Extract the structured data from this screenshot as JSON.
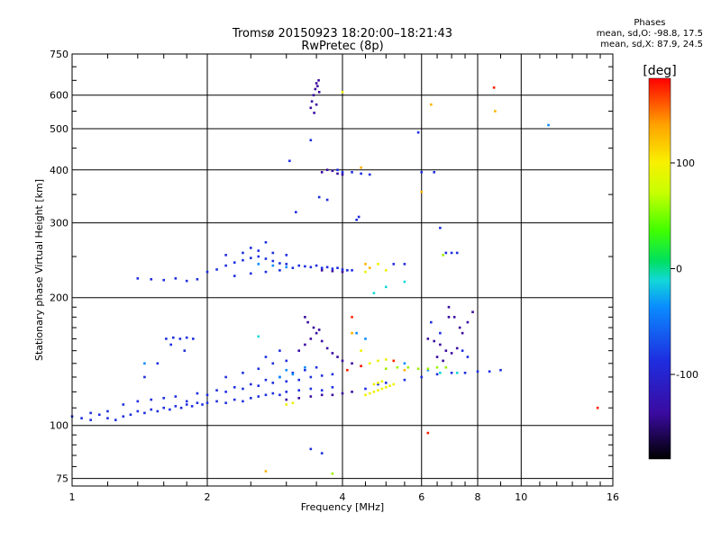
{
  "header": {
    "title_line1": "Tromsø 20150923 18:20:00–18:21:43",
    "title_line2": "RwPretec (8p)"
  },
  "phase_stats": {
    "heading": "Phases",
    "line_o": "mean, sd,O: -98.8, 17.5",
    "line_x": "mean, sd,X:  87.9, 24.5"
  },
  "chart_data": {
    "type": "scatter",
    "xlabel": "Frequency [MHz]",
    "ylabel": "Stationary phase Virtual Height [km]",
    "x_scale": "log",
    "y_scale": "log",
    "xlim": [
      1,
      16
    ],
    "ylim": [
      72,
      750
    ],
    "x_ticks": [
      1,
      2,
      4,
      6,
      8,
      10,
      16
    ],
    "x_tick_labels": [
      "1",
      "2",
      "4",
      "6",
      "8",
      "10",
      "16"
    ],
    "y_ticks": [
      75,
      100,
      200,
      300,
      400,
      500,
      600,
      750
    ],
    "y_tick_labels": [
      "75",
      "100",
      "200",
      "300",
      "400",
      "500",
      "600",
      "750"
    ],
    "grid": true,
    "colorbar": {
      "label": "[deg]",
      "range": [
        -180,
        180
      ],
      "ticks": [
        100,
        0,
        -100
      ],
      "tick_labels": [
        "100",
        "0",
        "-100"
      ]
    },
    "series": [
      {
        "phase": -100,
        "color": "#1e2ee0",
        "points": [
          [
            1.0,
            105
          ],
          [
            1.05,
            104
          ],
          [
            1.1,
            103
          ],
          [
            1.15,
            106
          ],
          [
            1.2,
            104
          ],
          [
            1.25,
            103
          ],
          [
            1.3,
            105
          ],
          [
            1.35,
            106
          ],
          [
            1.4,
            108
          ],
          [
            1.45,
            107
          ],
          [
            1.5,
            109
          ],
          [
            1.55,
            108
          ],
          [
            1.6,
            110
          ],
          [
            1.65,
            109
          ],
          [
            1.7,
            111
          ],
          [
            1.75,
            110
          ],
          [
            1.8,
            112
          ],
          [
            1.85,
            111
          ],
          [
            1.9,
            113
          ],
          [
            1.95,
            112
          ],
          [
            2.0,
            113
          ],
          [
            2.1,
            114
          ],
          [
            2.2,
            113
          ],
          [
            2.3,
            115
          ],
          [
            2.4,
            114
          ],
          [
            2.5,
            116
          ],
          [
            2.6,
            117
          ],
          [
            2.7,
            118
          ],
          [
            2.8,
            119
          ],
          [
            2.9,
            118
          ],
          [
            3.0,
            120
          ],
          [
            3.2,
            121
          ],
          [
            3.4,
            122
          ],
          [
            3.6,
            121
          ],
          [
            3.8,
            123
          ],
          [
            1.6,
            116
          ],
          [
            1.8,
            114
          ],
          [
            2.0,
            118
          ],
          [
            2.2,
            120
          ],
          [
            2.4,
            122
          ],
          [
            2.6,
            124
          ],
          [
            2.8,
            126
          ],
          [
            3.0,
            127
          ],
          [
            3.2,
            128
          ],
          [
            3.4,
            130
          ],
          [
            3.6,
            131
          ],
          [
            3.8,
            132
          ],
          [
            1.3,
            112
          ],
          [
            1.4,
            114
          ],
          [
            1.5,
            115
          ],
          [
            1.2,
            108
          ],
          [
            1.1,
            107
          ],
          [
            1.7,
            117
          ],
          [
            1.9,
            119
          ],
          [
            2.1,
            121
          ],
          [
            2.3,
            123
          ],
          [
            2.5,
            125
          ],
          [
            2.7,
            128
          ],
          [
            2.9,
            130
          ],
          [
            3.1,
            133
          ],
          [
            3.3,
            135
          ],
          [
            3.5,
            137
          ],
          [
            2.2,
            130
          ],
          [
            2.4,
            133
          ],
          [
            2.6,
            136
          ],
          [
            2.8,
            140
          ],
          [
            3.0,
            142
          ],
          [
            2.7,
            145
          ],
          [
            2.9,
            150
          ],
          [
            1.55,
            140
          ],
          [
            1.45,
            130
          ],
          [
            1.62,
            160
          ],
          [
            1.68,
            161
          ],
          [
            1.74,
            160
          ],
          [
            1.8,
            161
          ],
          [
            1.86,
            160
          ],
          [
            1.66,
            155
          ],
          [
            1.78,
            150
          ],
          [
            1.4,
            222
          ],
          [
            1.5,
            221
          ],
          [
            1.6,
            220
          ],
          [
            1.7,
            222
          ],
          [
            1.8,
            219
          ],
          [
            1.9,
            221
          ],
          [
            2.0,
            230
          ],
          [
            2.1,
            233
          ],
          [
            2.2,
            238
          ],
          [
            2.3,
            242
          ],
          [
            2.4,
            245
          ],
          [
            2.5,
            248
          ],
          [
            2.6,
            250
          ],
          [
            2.7,
            247
          ],
          [
            2.8,
            244
          ],
          [
            2.9,
            241
          ],
          [
            3.0,
            240
          ],
          [
            3.2,
            238
          ],
          [
            3.4,
            236
          ],
          [
            3.6,
            235
          ],
          [
            3.8,
            234
          ],
          [
            4.0,
            233
          ],
          [
            4.2,
            232
          ],
          [
            2.2,
            252
          ],
          [
            2.4,
            255
          ],
          [
            2.6,
            258
          ],
          [
            2.8,
            255
          ],
          [
            3.0,
            252
          ],
          [
            2.5,
            262
          ],
          [
            2.7,
            270
          ],
          [
            2.3,
            225
          ],
          [
            2.5,
            228
          ],
          [
            2.7,
            230
          ],
          [
            2.9,
            232
          ],
          [
            3.1,
            235
          ],
          [
            3.3,
            237
          ],
          [
            3.5,
            238
          ],
          [
            3.7,
            236
          ],
          [
            3.9,
            235
          ],
          [
            4.1,
            232
          ],
          [
            3.05,
            420
          ],
          [
            3.15,
            318
          ],
          [
            3.4,
            470
          ],
          [
            3.55,
            345
          ],
          [
            3.7,
            340
          ],
          [
            3.9,
            400
          ],
          [
            4.0,
            395
          ],
          [
            4.2,
            395
          ],
          [
            4.4,
            392
          ],
          [
            4.6,
            390
          ],
          [
            4.3,
            305
          ],
          [
            4.35,
            310
          ],
          [
            5.9,
            490
          ],
          [
            6.0,
            395
          ],
          [
            6.4,
            395
          ],
          [
            6.6,
            292
          ],
          [
            5.2,
            240
          ],
          [
            5.5,
            240
          ],
          [
            4.5,
            122
          ],
          [
            4.8,
            125
          ],
          [
            5.0,
            126
          ],
          [
            5.5,
            128
          ],
          [
            6.0,
            130
          ],
          [
            6.5,
            132
          ],
          [
            7.0,
            133
          ],
          [
            7.5,
            133
          ],
          [
            8.0,
            134
          ],
          [
            8.5,
            134
          ],
          [
            9.0,
            135
          ],
          [
            6.8,
            255
          ],
          [
            7.0,
            255
          ],
          [
            7.2,
            255
          ],
          [
            6.3,
            175
          ],
          [
            6.6,
            165
          ],
          [
            7.4,
            150
          ],
          [
            7.6,
            145
          ],
          [
            3.4,
            88
          ],
          [
            3.6,
            86
          ]
        ]
      },
      {
        "phase": -140,
        "color": "#3a0aa0",
        "points": [
          [
            3.4,
            560
          ],
          [
            3.42,
            580
          ],
          [
            3.45,
            600
          ],
          [
            3.48,
            620
          ],
          [
            3.5,
            640
          ],
          [
            3.52,
            630
          ],
          [
            3.55,
            610
          ],
          [
            3.46,
            545
          ],
          [
            3.5,
            570
          ],
          [
            3.54,
            650
          ],
          [
            3.6,
            395
          ],
          [
            3.7,
            400
          ],
          [
            3.8,
            398
          ],
          [
            3.9,
            392
          ],
          [
            4.0,
            390
          ],
          [
            3.2,
            150
          ],
          [
            3.3,
            155
          ],
          [
            3.4,
            160
          ],
          [
            3.5,
            165
          ],
          [
            3.6,
            158
          ],
          [
            3.7,
            152
          ],
          [
            3.8,
            148
          ],
          [
            3.9,
            145
          ],
          [
            4.0,
            142
          ],
          [
            4.2,
            140
          ],
          [
            4.4,
            138
          ],
          [
            3.3,
            180
          ],
          [
            3.35,
            175
          ],
          [
            3.45,
            170
          ],
          [
            3.55,
            168
          ],
          [
            3.0,
            115
          ],
          [
            3.2,
            116
          ],
          [
            3.4,
            117
          ],
          [
            3.6,
            118
          ],
          [
            3.8,
            118
          ],
          [
            4.0,
            119
          ],
          [
            4.2,
            120
          ],
          [
            6.2,
            160
          ],
          [
            6.4,
            158
          ],
          [
            6.6,
            155
          ],
          [
            6.8,
            150
          ],
          [
            7.0,
            148
          ],
          [
            7.2,
            152
          ],
          [
            7.4,
            165
          ],
          [
            7.6,
            175
          ],
          [
            7.8,
            185
          ],
          [
            6.9,
            190
          ],
          [
            7.1,
            180
          ],
          [
            6.5,
            145
          ],
          [
            6.7,
            142
          ],
          [
            6.9,
            180
          ],
          [
            7.3,
            170
          ],
          [
            3.6,
            232
          ],
          [
            3.8,
            231
          ],
          [
            4.0,
            230
          ]
        ]
      },
      {
        "phase": -60,
        "color": "#0a8cff",
        "points": [
          [
            1.45,
            140
          ],
          [
            2.6,
            240
          ],
          [
            2.8,
            238
          ],
          [
            3.0,
            236
          ],
          [
            2.9,
            130
          ],
          [
            3.1,
            132
          ],
          [
            4.3,
            165
          ],
          [
            4.5,
            160
          ],
          [
            5.5,
            140
          ],
          [
            6.2,
            135
          ],
          [
            11.5,
            510
          ],
          [
            3.0,
            135
          ],
          [
            3.3,
            137
          ]
        ]
      },
      {
        "phase": -20,
        "color": "#12d8d8",
        "points": [
          [
            2.6,
            162
          ],
          [
            4.7,
            205
          ],
          [
            5.0,
            212
          ],
          [
            5.5,
            218
          ],
          [
            6.6,
            133
          ],
          [
            7.2,
            133
          ]
        ]
      },
      {
        "phase": 60,
        "color": "#9ff000",
        "points": [
          [
            5.0,
            136
          ],
          [
            5.3,
            137
          ],
          [
            5.6,
            137
          ],
          [
            5.9,
            136
          ],
          [
            6.2,
            136
          ],
          [
            6.5,
            137
          ],
          [
            6.8,
            137
          ],
          [
            3.8,
            77
          ],
          [
            6.7,
            252
          ]
        ]
      },
      {
        "phase": 100,
        "color": "#f0f000",
        "points": [
          [
            4.5,
            118
          ],
          [
            4.6,
            119
          ],
          [
            4.7,
            120
          ],
          [
            4.8,
            121
          ],
          [
            4.9,
            122
          ],
          [
            5.0,
            123
          ],
          [
            5.1,
            124
          ],
          [
            5.2,
            125
          ],
          [
            4.7,
            125
          ],
          [
            4.8,
            126
          ],
          [
            4.9,
            127
          ],
          [
            4.6,
            140
          ],
          [
            4.8,
            142
          ],
          [
            5.0,
            143
          ],
          [
            5.2,
            142
          ],
          [
            4.5,
            230
          ],
          [
            4.6,
            235
          ],
          [
            4.8,
            240
          ],
          [
            5.0,
            232
          ],
          [
            4.0,
            610
          ],
          [
            4.4,
            150
          ],
          [
            3.0,
            112
          ],
          [
            3.1,
            113
          ]
        ]
      },
      {
        "phase": 130,
        "color": "#ffb400",
        "points": [
          [
            2.7,
            78
          ],
          [
            4.2,
            165
          ],
          [
            4.5,
            240
          ],
          [
            4.6,
            235
          ],
          [
            5.5,
            135
          ],
          [
            6.0,
            355
          ],
          [
            6.3,
            570
          ],
          [
            8.75,
            550
          ],
          [
            4.4,
            405
          ]
        ]
      },
      {
        "phase": 170,
        "color": "#ff2000",
        "points": [
          [
            4.1,
            135
          ],
          [
            4.4,
            138
          ],
          [
            4.2,
            180
          ],
          [
            8.7,
            625
          ],
          [
            14.8,
            110
          ],
          [
            6.2,
            96
          ],
          [
            5.2,
            142
          ]
        ]
      }
    ]
  }
}
